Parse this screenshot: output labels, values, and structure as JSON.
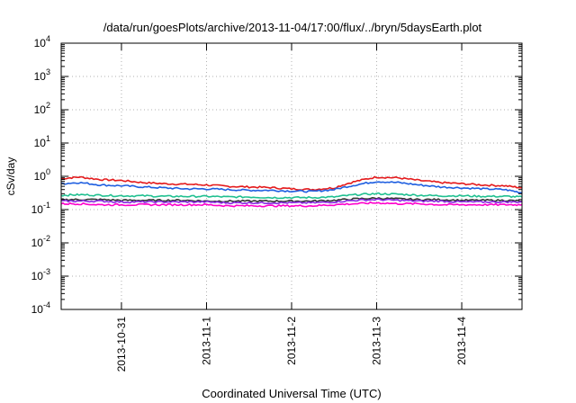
{
  "chart_data": {
    "type": "line",
    "title": "/data/run/goesPlots/archive/2013-11-04/17:00/flux/../bryn/5daysEarth.plot",
    "xlabel": "Coordinated Universal Time (UTC)",
    "ylabel": "cSv/day",
    "yscale": "log",
    "ylim": [
      0.0001,
      10000
    ],
    "y_tick_labels": [
      {
        "base": "10",
        "exp": "-4",
        "value": 0.0001
      },
      {
        "base": "10",
        "exp": "-3",
        "value": 0.001
      },
      {
        "base": "10",
        "exp": "-2",
        "value": 0.01
      },
      {
        "base": "10",
        "exp": "-1",
        "value": 0.1
      },
      {
        "base": "10",
        "exp": "0",
        "value": 1
      },
      {
        "base": "10",
        "exp": "1",
        "value": 10
      },
      {
        "base": "10",
        "exp": "2",
        "value": 100
      },
      {
        "base": "10",
        "exp": "3",
        "value": 1000
      },
      {
        "base": "10",
        "exp": "4",
        "value": 10000
      }
    ],
    "xlim": [
      "2013-10-30T07:00",
      "2013-11-04T17:00"
    ],
    "x_tick_labels": [
      "2013-10-31",
      "2013-11-1",
      "2013-11-2",
      "2013-11-3",
      "2013-11-4"
    ],
    "grid": true,
    "x": [
      "2013-10-30T07:00",
      "2013-10-30T12:00",
      "2013-10-30T18:00",
      "2013-10-31T00:00",
      "2013-10-31T06:00",
      "2013-10-31T12:00",
      "2013-10-31T18:00",
      "2013-11-01T00:00",
      "2013-11-01T06:00",
      "2013-11-01T12:00",
      "2013-11-01T18:00",
      "2013-11-02T00:00",
      "2013-11-02T06:00",
      "2013-11-02T12:00",
      "2013-11-02T18:00",
      "2013-11-03T00:00",
      "2013-11-03T06:00",
      "2013-11-03T12:00",
      "2013-11-03T18:00",
      "2013-11-04T00:00",
      "2013-11-04T06:00",
      "2013-11-04T12:00",
      "2013-11-04T17:00"
    ],
    "series": [
      {
        "color": "#e41a1c",
        "values": [
          0.85,
          0.95,
          0.8,
          0.75,
          0.65,
          0.6,
          0.58,
          0.55,
          0.5,
          0.48,
          0.46,
          0.42,
          0.4,
          0.45,
          0.7,
          0.95,
          0.9,
          0.75,
          0.65,
          0.6,
          0.55,
          0.52,
          0.45
        ]
      },
      {
        "color": "#1f5fe0",
        "values": [
          0.6,
          0.65,
          0.55,
          0.52,
          0.48,
          0.45,
          0.42,
          0.42,
          0.4,
          0.38,
          0.38,
          0.36,
          0.35,
          0.4,
          0.55,
          0.7,
          0.65,
          0.55,
          0.48,
          0.45,
          0.42,
          0.4,
          0.32
        ]
      },
      {
        "color": "#20c090",
        "values": [
          0.27,
          0.28,
          0.27,
          0.26,
          0.26,
          0.25,
          0.25,
          0.25,
          0.24,
          0.24,
          0.23,
          0.23,
          0.23,
          0.24,
          0.28,
          0.3,
          0.29,
          0.27,
          0.26,
          0.26,
          0.25,
          0.25,
          0.24
        ]
      },
      {
        "color": "#333333",
        "values": [
          0.2,
          0.2,
          0.2,
          0.19,
          0.19,
          0.19,
          0.19,
          0.18,
          0.18,
          0.18,
          0.18,
          0.18,
          0.18,
          0.19,
          0.21,
          0.22,
          0.21,
          0.2,
          0.2,
          0.19,
          0.19,
          0.19,
          0.18
        ]
      },
      {
        "color": "#8a2be2",
        "values": [
          0.18,
          0.18,
          0.18,
          0.17,
          0.17,
          0.17,
          0.17,
          0.17,
          0.16,
          0.16,
          0.16,
          0.16,
          0.16,
          0.17,
          0.19,
          0.2,
          0.19,
          0.18,
          0.18,
          0.17,
          0.17,
          0.17,
          0.17
        ]
      },
      {
        "color": "#ff00cc",
        "values": [
          0.15,
          0.15,
          0.14,
          0.14,
          0.14,
          0.14,
          0.14,
          0.14,
          0.13,
          0.13,
          0.13,
          0.13,
          0.13,
          0.14,
          0.15,
          0.16,
          0.15,
          0.15,
          0.14,
          0.14,
          0.14,
          0.14,
          0.14
        ]
      }
    ]
  }
}
